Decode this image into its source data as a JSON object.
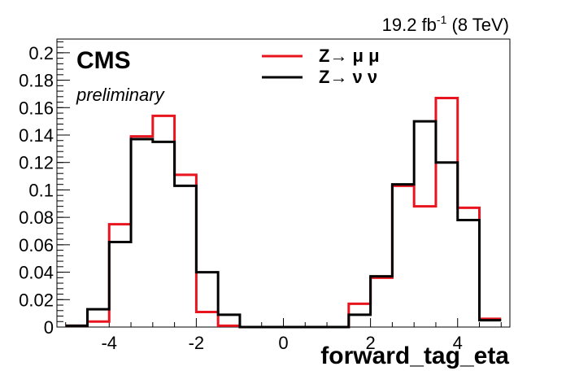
{
  "chart_data": {
    "type": "histogram",
    "xlabel": "forward_tag_eta",
    "ylabel": "",
    "xlim": [
      -5.2,
      5.2
    ],
    "ylim": [
      0,
      0.21
    ],
    "bin_edges": [
      -5,
      -4.5,
      -4,
      -3.5,
      -3,
      -2.5,
      -2,
      -1.5,
      -1,
      -0.5,
      0,
      0.5,
      1,
      1.5,
      2,
      2.5,
      3,
      3.5,
      4,
      4.5,
      5
    ],
    "x_ticks": [
      -4,
      -2,
      0,
      2,
      4
    ],
    "x_tick_labels": [
      "-4",
      "-2",
      "0",
      "2",
      "4"
    ],
    "y_ticks": [
      0,
      0.02,
      0.04,
      0.06,
      0.08,
      0.1,
      0.12,
      0.14,
      0.16,
      0.18,
      0.2
    ],
    "y_tick_labels": [
      "0",
      "0.02",
      "0.04",
      "0.06",
      "0.08",
      "0.1",
      "0.12",
      "0.14",
      "0.16",
      "0.18",
      "0.2"
    ],
    "series": [
      {
        "name": "Z→ μ μ",
        "color": "#e8141e",
        "values": [
          0.001,
          0.004,
          0.075,
          0.139,
          0.154,
          0.111,
          0.011,
          0.001,
          0,
          0,
          0,
          0,
          0,
          0.017,
          0.036,
          0.103,
          0.088,
          0.167,
          0.087,
          0.006
        ]
      },
      {
        "name": "Z→ ν ν",
        "color": "#000000",
        "values": [
          0.001,
          0.013,
          0.062,
          0.137,
          0.135,
          0.103,
          0.04,
          0.009,
          0,
          0,
          0,
          0,
          0,
          0.009,
          0.037,
          0.104,
          0.15,
          0.12,
          0.078,
          0.005
        ]
      }
    ],
    "texts": {
      "experiment": "CMS",
      "status": "preliminary",
      "lumi_value": "19.2 fb",
      "lumi_exponent": "-1",
      "energy": " (8 TeV)"
    },
    "legend_position": "top-center",
    "grid": false
  }
}
